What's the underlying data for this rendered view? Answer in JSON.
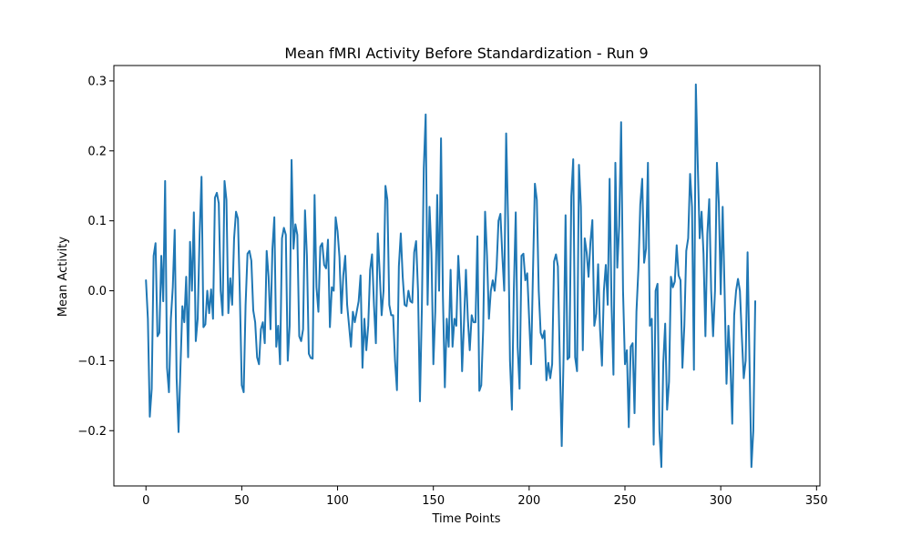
{
  "chart_data": {
    "type": "line",
    "title": "Mean fMRI Activity Before Standardization - Run 9",
    "xlabel": "Time Points",
    "ylabel": "Mean Activity",
    "xlim": [
      -16.75,
      351.75
    ],
    "ylim": [
      -0.279,
      0.322
    ],
    "xticks": [
      0,
      50,
      100,
      150,
      200,
      250,
      300,
      350
    ],
    "yticks": [
      -0.2,
      -0.1,
      0.0,
      0.1,
      0.2,
      0.3
    ],
    "xtick_labels": [
      "0",
      "50",
      "100",
      "150",
      "200",
      "250",
      "300",
      "350"
    ],
    "ytick_labels": [
      "−0.2",
      "−0.1",
      "0.0",
      "0.1",
      "0.2",
      "0.3"
    ],
    "grid": false,
    "legend": "none",
    "colors": {
      "series": "#1f77b4"
    },
    "series": [
      {
        "values": [
          0.015,
          -0.04,
          -0.18,
          -0.14,
          0.05,
          0.068,
          -0.065,
          -0.06,
          0.05,
          -0.015,
          0.157,
          -0.11,
          -0.145,
          -0.04,
          0.005,
          0.087,
          -0.125,
          -0.202,
          -0.11,
          -0.022,
          -0.045,
          0.02,
          -0.095,
          0.07,
          0.0,
          0.112,
          -0.072,
          -0.04,
          0.08,
          0.163,
          -0.052,
          -0.048,
          0.0,
          -0.032,
          0.002,
          -0.04,
          0.133,
          0.14,
          0.125,
          0.0,
          -0.035,
          0.157,
          0.13,
          -0.032,
          0.018,
          -0.02,
          0.075,
          0.113,
          0.103,
          -0.005,
          -0.135,
          -0.145,
          -0.02,
          0.053,
          0.057,
          0.043,
          -0.028,
          -0.045,
          -0.095,
          -0.105,
          -0.055,
          -0.045,
          -0.075,
          0.057,
          0.02,
          -0.055,
          0.06,
          0.105,
          -0.08,
          -0.05,
          -0.105,
          0.075,
          0.09,
          0.08,
          -0.1,
          -0.05,
          0.187,
          0.06,
          0.095,
          0.08,
          -0.065,
          -0.072,
          -0.055,
          0.115,
          0.05,
          -0.09,
          -0.096,
          -0.097,
          0.137,
          0.005,
          -0.03,
          0.063,
          0.068,
          0.037,
          0.032,
          0.073,
          -0.052,
          0.005,
          0.0,
          0.105,
          0.085,
          0.048,
          -0.032,
          0.022,
          0.05,
          -0.02,
          -0.05,
          -0.08,
          -0.03,
          -0.045,
          -0.03,
          -0.015,
          0.022,
          -0.11,
          -0.04,
          -0.085,
          -0.05,
          0.03,
          0.052,
          -0.02,
          -0.075,
          0.082,
          0.025,
          -0.035,
          0.0,
          0.15,
          0.13,
          -0.02,
          -0.035,
          -0.035,
          -0.1,
          -0.142,
          0.035,
          0.082,
          0.02,
          -0.02,
          -0.022,
          0.0,
          -0.015,
          -0.017,
          0.055,
          0.071,
          0.0,
          -0.158,
          -0.025,
          0.175,
          0.252,
          -0.02,
          0.12,
          0.055,
          -0.105,
          -0.03,
          0.137,
          0.0,
          0.218,
          -0.01,
          -0.138,
          -0.04,
          -0.08,
          0.03,
          -0.08,
          -0.04,
          -0.05,
          0.05,
          0.0,
          -0.115,
          -0.045,
          0.03,
          -0.04,
          -0.085,
          -0.035,
          -0.045,
          -0.045,
          0.078,
          -0.143,
          -0.135,
          -0.055,
          0.113,
          0.05,
          -0.04,
          0.0,
          0.015,
          0.0,
          0.033,
          0.1,
          0.11,
          0.05,
          0.0,
          0.225,
          0.1,
          -0.1,
          -0.17,
          0.0,
          0.112,
          -0.08,
          -0.14,
          0.05,
          0.053,
          0.015,
          0.025,
          -0.04,
          -0.105,
          0.028,
          0.153,
          0.13,
          0.0,
          -0.06,
          -0.068,
          -0.057,
          -0.128,
          -0.103,
          -0.125,
          -0.105,
          0.042,
          0.052,
          0.035,
          -0.1,
          -0.222,
          -0.09,
          0.108,
          -0.098,
          -0.095,
          0.135,
          0.188,
          -0.095,
          -0.115,
          0.18,
          0.12,
          -0.085,
          0.075,
          0.055,
          0.02,
          0.07,
          0.101,
          -0.05,
          -0.033,
          0.038,
          -0.055,
          -0.107,
          0.0,
          0.037,
          -0.02,
          0.16,
          -0.02,
          -0.12,
          0.183,
          0.033,
          0.093,
          0.241,
          0.0,
          -0.105,
          -0.085,
          -0.195,
          -0.08,
          -0.075,
          -0.175,
          -0.03,
          0.03,
          0.123,
          0.16,
          0.04,
          0.06,
          0.183,
          -0.05,
          -0.04,
          -0.22,
          0.0,
          0.01,
          -0.2,
          -0.252,
          -0.103,
          -0.047,
          -0.17,
          -0.13,
          0.02,
          0.005,
          0.013,
          0.065,
          0.022,
          0.015,
          -0.11,
          -0.05,
          0.057,
          0.075,
          0.167,
          0.12,
          -0.113,
          0.295,
          0.181,
          0.075,
          0.113,
          0.053,
          -0.065,
          0.081,
          0.131,
          0.0,
          -0.065,
          0.0,
          0.183,
          0.125,
          -0.005,
          0.12,
          0.0,
          -0.133,
          -0.05,
          -0.1,
          -0.19,
          -0.035,
          0.0,
          0.017,
          0.0,
          -0.065,
          -0.125,
          -0.1,
          0.055,
          -0.1,
          -0.252,
          -0.2,
          -0.015
        ]
      }
    ]
  }
}
